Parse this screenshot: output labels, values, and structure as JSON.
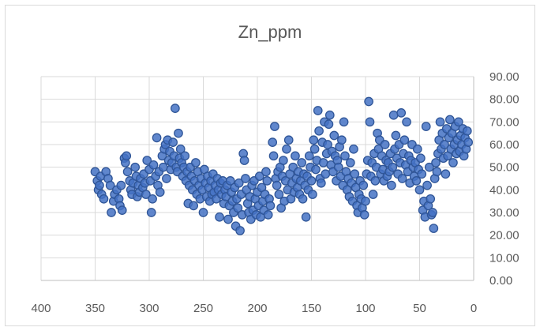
{
  "chart_data": {
    "type": "scatter",
    "title": "Zn_ppm",
    "xlabel": "",
    "ylabel": "",
    "xlim": [
      400,
      0
    ],
    "ylim": [
      0,
      90
    ],
    "x_reversed": true,
    "y_axis_side": "right",
    "x_ticks": [
      400,
      350,
      300,
      250,
      200,
      150,
      100,
      50,
      0
    ],
    "y_ticks": [
      0,
      10,
      20,
      30,
      40,
      50,
      60,
      70,
      80,
      90
    ],
    "x_tick_labels": [
      "400",
      "350",
      "300",
      "250",
      "200",
      "150",
      "100",
      "50",
      "0"
    ],
    "y_tick_labels": [
      "0.00",
      "10.00",
      "20.00",
      "30.00",
      "40.00",
      "50.00",
      "60.00",
      "70.00",
      "80.00",
      "90.00"
    ],
    "grid": true,
    "legend": "none",
    "marker_fill": "#4472C4",
    "marker_edge": "#2F5597",
    "points": [
      [
        350,
        48
      ],
      [
        348,
        44
      ],
      [
        347,
        40
      ],
      [
        346,
        42
      ],
      [
        345,
        46
      ],
      [
        344,
        38
      ],
      [
        342,
        36
      ],
      [
        340,
        48
      ],
      [
        338,
        45
      ],
      [
        336,
        42
      ],
      [
        335,
        30
      ],
      [
        333,
        35
      ],
      [
        332,
        38
      ],
      [
        330,
        40
      ],
      [
        328,
        36
      ],
      [
        327,
        33
      ],
      [
        326,
        42
      ],
      [
        325,
        31
      ],
      [
        323,
        54
      ],
      [
        322,
        52
      ],
      [
        321,
        55
      ],
      [
        320,
        48
      ],
      [
        318,
        44
      ],
      [
        317,
        40
      ],
      [
        316,
        38
      ],
      [
        315,
        43
      ],
      [
        313,
        50
      ],
      [
        312,
        46
      ],
      [
        311,
        37
      ],
      [
        310,
        42
      ],
      [
        309,
        39
      ],
      [
        308,
        45
      ],
      [
        306,
        41
      ],
      [
        305,
        47
      ],
      [
        304,
        43
      ],
      [
        303,
        38
      ],
      [
        302,
        53
      ],
      [
        300,
        49
      ],
      [
        299,
        44
      ],
      [
        298,
        30
      ],
      [
        297,
        36
      ],
      [
        296,
        51
      ],
      [
        294,
        46
      ],
      [
        293,
        63
      ],
      [
        292,
        42
      ],
      [
        291,
        48
      ],
      [
        290,
        39
      ],
      [
        288,
        55
      ],
      [
        287,
        50
      ],
      [
        286,
        58
      ],
      [
        285,
        60
      ],
      [
        284,
        45
      ],
      [
        283,
        62
      ],
      [
        282,
        53
      ],
      [
        281,
        57
      ],
      [
        280,
        49
      ],
      [
        279,
        52
      ],
      [
        278,
        61
      ],
      [
        277,
        55
      ],
      [
        276,
        76
      ],
      [
        275,
        50
      ],
      [
        274,
        48
      ],
      [
        273,
        65
      ],
      [
        272,
        54
      ],
      [
        271,
        58
      ],
      [
        270,
        52
      ],
      [
        269,
        46
      ],
      [
        268,
        50
      ],
      [
        267,
        55
      ],
      [
        266,
        44
      ],
      [
        265,
        48
      ],
      [
        264,
        34
      ],
      [
        263,
        42
      ],
      [
        262,
        50
      ],
      [
        261,
        46
      ],
      [
        260,
        40
      ],
      [
        259,
        33
      ],
      [
        258,
        44
      ],
      [
        257,
        52
      ],
      [
        256,
        38
      ],
      [
        255,
        48
      ],
      [
        254,
        42
      ],
      [
        253,
        36
      ],
      [
        252,
        45
      ],
      [
        251,
        40
      ],
      [
        250,
        30
      ],
      [
        249,
        49
      ],
      [
        248,
        43
      ],
      [
        247,
        37
      ],
      [
        246,
        46
      ],
      [
        245,
        41
      ],
      [
        244,
        35
      ],
      [
        243,
        44
      ],
      [
        242,
        38
      ],
      [
        241,
        47
      ],
      [
        240,
        39
      ],
      [
        239,
        42
      ],
      [
        238,
        36
      ],
      [
        237,
        45
      ],
      [
        236,
        40
      ],
      [
        235,
        28
      ],
      [
        234,
        43
      ],
      [
        233,
        38
      ],
      [
        232,
        44
      ],
      [
        231,
        34
      ],
      [
        230,
        40
      ],
      [
        229,
        37
      ],
      [
        228,
        42
      ],
      [
        227,
        27
      ],
      [
        226,
        33
      ],
      [
        225,
        44
      ],
      [
        224,
        39
      ],
      [
        223,
        35
      ],
      [
        222,
        30
      ],
      [
        221,
        41
      ],
      [
        220,
        24
      ],
      [
        219,
        36
      ],
      [
        218,
        32
      ],
      [
        217,
        43
      ],
      [
        216,
        22
      ],
      [
        215,
        38
      ],
      [
        214,
        29
      ],
      [
        213,
        56
      ],
      [
        212,
        53
      ],
      [
        211,
        45
      ],
      [
        210,
        40
      ],
      [
        209,
        34
      ],
      [
        208,
        30
      ],
      [
        207,
        37
      ],
      [
        206,
        27
      ],
      [
        205,
        42
      ],
      [
        204,
        31
      ],
      [
        203,
        44
      ],
      [
        202,
        36
      ],
      [
        201,
        29
      ],
      [
        200,
        39
      ],
      [
        199,
        33
      ],
      [
        198,
        46
      ],
      [
        197,
        28
      ],
      [
        196,
        41
      ],
      [
        195,
        35
      ],
      [
        194,
        31
      ],
      [
        193,
        38
      ],
      [
        192,
        48
      ],
      [
        191,
        44
      ],
      [
        190,
        29
      ],
      [
        189,
        36
      ],
      [
        188,
        33
      ],
      [
        186,
        61
      ],
      [
        185,
        55
      ],
      [
        184,
        68
      ],
      [
        183,
        45
      ],
      [
        182,
        42
      ],
      [
        181,
        48
      ],
      [
        180,
        38
      ],
      [
        179,
        50
      ],
      [
        178,
        32
      ],
      [
        177,
        46
      ],
      [
        176,
        53
      ],
      [
        175,
        35
      ],
      [
        174,
        44
      ],
      [
        173,
        58
      ],
      [
        172,
        40
      ],
      [
        171,
        62
      ],
      [
        170,
        47
      ],
      [
        169,
        36
      ],
      [
        168,
        43
      ],
      [
        167,
        50
      ],
      [
        166,
        39
      ],
      [
        165,
        55
      ],
      [
        164,
        45
      ],
      [
        163,
        41
      ],
      [
        162,
        48
      ],
      [
        161,
        38
      ],
      [
        160,
        44
      ],
      [
        159,
        52
      ],
      [
        158,
        36
      ],
      [
        157,
        47
      ],
      [
        156,
        42
      ],
      [
        155,
        28
      ],
      [
        154,
        46
      ],
      [
        153,
        40
      ],
      [
        152,
        55
      ],
      [
        151,
        50
      ],
      [
        150,
        44
      ],
      [
        149,
        38
      ],
      [
        148,
        62
      ],
      [
        147,
        58
      ],
      [
        146,
        49
      ],
      [
        145,
        53
      ],
      [
        144,
        75
      ],
      [
        143,
        66
      ],
      [
        142,
        45
      ],
      [
        141,
        43
      ],
      [
        140,
        61
      ],
      [
        139,
        52
      ],
      [
        138,
        70
      ],
      [
        137,
        47
      ],
      [
        136,
        56
      ],
      [
        135,
        60
      ],
      [
        134,
        69
      ],
      [
        133,
        73
      ],
      [
        132,
        51
      ],
      [
        131,
        57
      ],
      [
        130,
        48
      ],
      [
        129,
        64
      ],
      [
        128,
        55
      ],
      [
        127,
        44
      ],
      [
        126,
        53
      ],
      [
        125,
        50
      ],
      [
        124,
        59
      ],
      [
        123,
        46
      ],
      [
        122,
        62
      ],
      [
        121,
        42
      ],
      [
        120,
        70
      ],
      [
        119,
        55
      ],
      [
        118,
        48
      ],
      [
        117,
        40
      ],
      [
        116,
        45
      ],
      [
        115,
        37
      ],
      [
        114,
        52
      ],
      [
        113,
        43
      ],
      [
        112,
        35
      ],
      [
        111,
        58
      ],
      [
        110,
        47
      ],
      [
        109,
        41
      ],
      [
        108,
        33
      ],
      [
        107,
        30
      ],
      [
        106,
        38
      ],
      [
        105,
        44
      ],
      [
        104,
        36
      ],
      [
        103,
        32
      ],
      [
        102,
        42
      ],
      [
        101,
        29
      ],
      [
        100,
        35
      ],
      [
        99,
        47
      ],
      [
        98,
        53
      ],
      [
        97,
        79
      ],
      [
        96,
        70
      ],
      [
        95,
        46
      ],
      [
        94,
        52
      ],
      [
        93,
        38
      ],
      [
        92,
        56
      ],
      [
        91,
        44
      ],
      [
        90,
        50
      ],
      [
        89,
        65
      ],
      [
        88,
        58
      ],
      [
        87,
        62
      ],
      [
        86,
        47
      ],
      [
        85,
        55
      ],
      [
        84,
        49
      ],
      [
        83,
        44
      ],
      [
        82,
        60
      ],
      [
        81,
        53
      ],
      [
        80,
        46
      ],
      [
        79,
        52
      ],
      [
        78,
        48
      ],
      [
        77,
        56
      ],
      [
        76,
        42
      ],
      [
        75,
        50
      ],
      [
        74,
        73
      ],
      [
        73,
        58
      ],
      [
        72,
        64
      ],
      [
        71,
        54
      ],
      [
        70,
        47
      ],
      [
        69,
        60
      ],
      [
        68,
        52
      ],
      [
        67,
        74
      ],
      [
        66,
        45
      ],
      [
        65,
        56
      ],
      [
        64,
        62
      ],
      [
        63,
        51
      ],
      [
        62,
        70
      ],
      [
        61,
        48
      ],
      [
        60,
        55
      ],
      [
        59,
        43
      ],
      [
        58,
        53
      ],
      [
        57,
        60
      ],
      [
        56,
        50
      ],
      [
        55,
        46
      ],
      [
        54,
        52
      ],
      [
        53,
        44
      ],
      [
        52,
        58
      ],
      [
        51,
        49
      ],
      [
        50,
        40
      ],
      [
        49,
        54
      ],
      [
        48,
        47
      ],
      [
        47,
        31
      ],
      [
        46,
        35
      ],
      [
        45,
        28
      ],
      [
        44,
        68
      ],
      [
        43,
        42
      ],
      [
        42,
        33
      ],
      [
        41,
        50
      ],
      [
        40,
        36
      ],
      [
        39,
        29
      ],
      [
        38,
        30
      ],
      [
        37,
        23
      ],
      [
        36,
        45
      ],
      [
        35,
        52
      ],
      [
        34,
        48
      ],
      [
        33,
        56
      ],
      [
        32,
        62
      ],
      [
        31,
        70
      ],
      [
        30,
        58
      ],
      [
        29,
        65
      ],
      [
        28,
        54
      ],
      [
        27,
        60
      ],
      [
        26,
        47
      ],
      [
        25,
        67
      ],
      [
        24,
        55
      ],
      [
        23,
        63
      ],
      [
        22,
        71
      ],
      [
        21,
        58
      ],
      [
        20,
        65
      ],
      [
        19,
        52
      ],
      [
        18,
        60
      ],
      [
        17,
        68
      ],
      [
        16,
        56
      ],
      [
        15,
        62
      ],
      [
        14,
        70
      ],
      [
        13,
        57
      ],
      [
        12,
        64
      ],
      [
        11,
        60
      ],
      [
        10,
        67
      ],
      [
        9,
        55
      ],
      [
        8,
        63
      ],
      [
        7,
        58
      ],
      [
        6,
        66
      ],
      [
        5,
        61
      ]
    ]
  }
}
